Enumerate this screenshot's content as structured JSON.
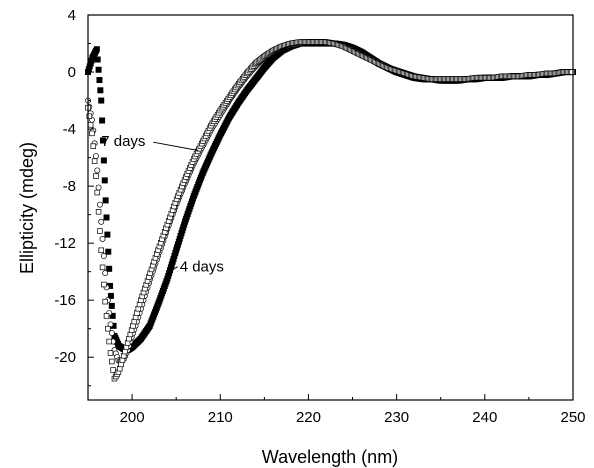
{
  "chart_data": {
    "type": "scatter",
    "xlabel": "Wavelength (nm)",
    "ylabel": "Ellipticity (mdeg)",
    "xlim": [
      195,
      250
    ],
    "ylim": [
      -23,
      4
    ],
    "xticks": [
      200,
      210,
      220,
      230,
      240,
      250
    ],
    "xtick_labels": [
      "200",
      "210",
      "220",
      "230",
      "240",
      "250"
    ],
    "yticks": [
      4,
      0,
      -4,
      -8,
      -12,
      -16,
      -20
    ],
    "ytick_labels": [
      "4",
      "0",
      "-4",
      "-8",
      "-12",
      "-16",
      "-20"
    ],
    "grid": false,
    "legend": "none",
    "series": [
      {
        "marker": "filled-square",
        "color": "#000000",
        "x": [
          195,
          195.5,
          196,
          196.5,
          197,
          197.5,
          198,
          198.5,
          199,
          199.5,
          200,
          200.5,
          201,
          202,
          203,
          204,
          205,
          206,
          207,
          208,
          209,
          210,
          211,
          212,
          213,
          214,
          215,
          216,
          217,
          218,
          219,
          220,
          221,
          222,
          223,
          224,
          225,
          226,
          227,
          228,
          229,
          230,
          231,
          232,
          233,
          234,
          235,
          236,
          237,
          238,
          239,
          240,
          241,
          242,
          243,
          244,
          245,
          246,
          247,
          248,
          249,
          250
        ],
        "y": [
          0,
          1.0,
          1.6,
          -2,
          -9,
          -15,
          -18.5,
          -19.2,
          -19.4,
          -19.5,
          -19.3,
          -19.0,
          -18.7,
          -17.8,
          -16.2,
          -14.5,
          -12.5,
          -10.5,
          -8.7,
          -7.1,
          -5.7,
          -4.4,
          -3.2,
          -2.2,
          -1.3,
          -0.5,
          0.3,
          1.0,
          1.5,
          1.8,
          2.0,
          2.0,
          2.0,
          2.0,
          2.0,
          1.9,
          1.7,
          1.4,
          1.0,
          0.6,
          0.3,
          0.0,
          -0.2,
          -0.4,
          -0.5,
          -0.5,
          -0.6,
          -0.6,
          -0.6,
          -0.5,
          -0.5,
          -0.4,
          -0.4,
          -0.4,
          -0.3,
          -0.3,
          -0.3,
          -0.2,
          -0.2,
          -0.1,
          0.0,
          0.0
        ]
      },
      {
        "marker": "open-circle",
        "color": "#000000",
        "x": [
          195,
          195.5,
          196,
          196.5,
          197,
          197.5,
          198,
          198.5,
          199,
          199.5,
          200,
          200.5,
          201,
          202,
          203,
          204,
          205,
          206,
          207,
          208,
          209,
          210,
          211,
          212,
          213,
          214,
          215,
          216,
          217,
          218,
          219,
          220,
          221,
          222,
          223,
          224,
          225,
          226,
          227,
          228,
          229,
          230,
          231,
          232,
          233,
          234,
          235,
          236,
          237,
          238,
          239,
          240,
          241,
          242,
          243,
          244,
          245,
          246,
          247,
          248,
          249,
          250
        ],
        "y": [
          -2.0,
          -3.5,
          -6.5,
          -10.5,
          -14.5,
          -17.5,
          -19.5,
          -20.3,
          -20.2,
          -19.5,
          -18.5,
          -17.6,
          -16.6,
          -14.6,
          -12.8,
          -11.0,
          -9.3,
          -7.8,
          -6.4,
          -5.2,
          -4.0,
          -3.0,
          -2.0,
          -1.1,
          -0.3,
          0.4,
          1.0,
          1.4,
          1.7,
          1.9,
          2.0,
          2.1,
          2.1,
          2.1,
          2.0,
          1.8,
          1.5,
          1.2,
          0.9,
          0.6,
          0.3,
          0.1,
          -0.1,
          -0.3,
          -0.4,
          -0.5,
          -0.5,
          -0.5,
          -0.5,
          -0.5,
          -0.4,
          -0.4,
          -0.4,
          -0.3,
          -0.3,
          -0.3,
          -0.2,
          -0.2,
          -0.1,
          -0.1,
          0.0,
          0.0
        ]
      },
      {
        "marker": "open-square",
        "color": "#000000",
        "x": [
          195,
          195.5,
          196,
          196.5,
          197,
          197.5,
          198,
          198.5,
          199,
          199.5,
          200,
          200.5,
          201,
          202,
          203,
          204,
          205,
          206,
          207,
          208,
          209,
          210,
          211,
          212,
          213,
          214,
          215,
          216,
          217,
          218,
          219,
          220,
          221,
          222,
          223,
          224,
          225,
          226,
          227,
          228,
          229,
          230,
          231,
          232,
          233,
          234,
          235,
          236,
          237,
          238,
          239,
          240,
          241,
          242,
          243,
          244,
          245,
          246,
          247,
          248,
          249,
          250
        ],
        "y": [
          -2.5,
          -4.5,
          -8.0,
          -12.5,
          -16.5,
          -19.5,
          -21.5,
          -21.0,
          -20.0,
          -19.0,
          -18.0,
          -17.0,
          -16.0,
          -14.2,
          -12.4,
          -10.7,
          -9.0,
          -7.5,
          -6.1,
          -4.9,
          -3.7,
          -2.7,
          -1.8,
          -0.9,
          -0.1,
          0.6,
          1.1,
          1.5,
          1.8,
          2.0,
          2.1,
          2.1,
          2.1,
          2.1,
          2.0,
          1.8,
          1.5,
          1.2,
          0.9,
          0.6,
          0.3,
          0.1,
          -0.1,
          -0.3,
          -0.4,
          -0.5,
          -0.5,
          -0.5,
          -0.5,
          -0.5,
          -0.4,
          -0.4,
          -0.4,
          -0.3,
          -0.3,
          -0.3,
          -0.2,
          -0.2,
          -0.1,
          -0.1,
          0.0,
          0.0
        ]
      }
    ],
    "annotations": [
      {
        "text": "7 days",
        "label_x": 196.5,
        "label_y": -5.2,
        "arrow_to_x": 207.5,
        "arrow_to_y": -5.5
      },
      {
        "text": "4 days",
        "label_x": 205.4,
        "label_y": -14.0,
        "arrow_to_x": 204.2,
        "arrow_to_y": -14.0
      }
    ]
  }
}
